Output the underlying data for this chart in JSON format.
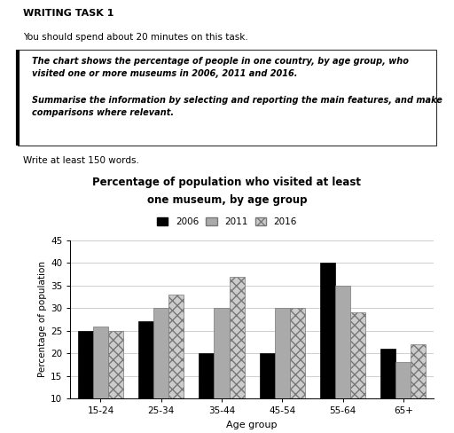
{
  "title_line1": "Percentage of population who visited at least",
  "title_line2": "one museum, by age group",
  "xlabel": "Age group",
  "ylabel": "Percentage of population",
  "categories": [
    "15-24",
    "25-34",
    "35-44",
    "45-54",
    "55-64",
    "65+"
  ],
  "years": [
    "2006",
    "2011",
    "2016"
  ],
  "values": {
    "2006": [
      25,
      27,
      20,
      20,
      40,
      21
    ],
    "2011": [
      26,
      30,
      30,
      30,
      35,
      18
    ],
    "2016": [
      25,
      33,
      37,
      30,
      29,
      22
    ]
  },
  "ylim": [
    10,
    45
  ],
  "yticks": [
    10,
    15,
    20,
    25,
    30,
    35,
    40,
    45
  ],
  "header_title": "WRITING TASK 1",
  "header_line1": "You should spend about 20 minutes on this task.",
  "box_text1": "The chart shows the percentage of people in one country, by age group, who\nvisited one or more museums in 2006, 2011 and 2016.",
  "box_text2": "Summarise the information by selecting and reporting the main features, and make\ncomparisons where relevant.",
  "footer_text": "Write at least 150 words.",
  "bar_width": 0.25,
  "background_color": "#ffffff",
  "fig_width": 5.12,
  "fig_height": 4.88
}
